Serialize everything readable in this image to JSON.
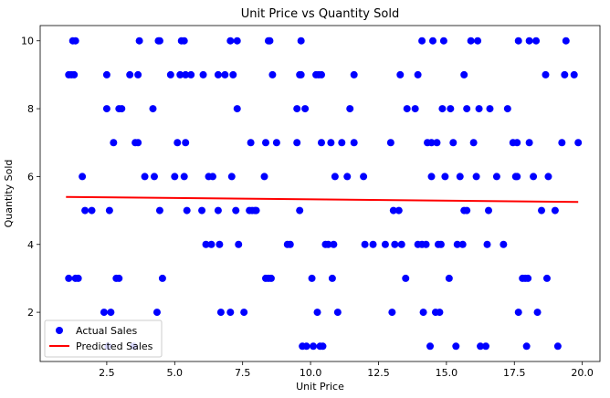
{
  "chart_data": {
    "type": "scatter",
    "title": "Unit Price vs Quantity Sold",
    "xlabel": "Unit Price",
    "ylabel": "Quantity Sold",
    "xlim": [
      0.05,
      20.65
    ],
    "ylim": [
      0.55,
      10.45
    ],
    "xticks": [
      2.5,
      5.0,
      7.5,
      10.0,
      12.5,
      15.0,
      17.5,
      20.0
    ],
    "xtick_labels": [
      "2.5",
      "5.0",
      "7.5",
      "10.0",
      "12.5",
      "15.0",
      "17.5",
      "20.0"
    ],
    "yticks": [
      2,
      4,
      6,
      8,
      10
    ],
    "ytick_labels": [
      "2",
      "4",
      "6",
      "8",
      "10"
    ],
    "grid": false,
    "legend_position": "lower-left",
    "series": [
      {
        "name": "Actual Sales",
        "kind": "scatter",
        "color": "#0000ff",
        "points": [
          [
            1.1,
            9
          ],
          [
            1.2,
            9
          ],
          [
            1.3,
            9
          ],
          [
            1.25,
            10
          ],
          [
            1.35,
            10
          ],
          [
            1.1,
            3
          ],
          [
            1.35,
            3
          ],
          [
            1.45,
            3
          ],
          [
            1.6,
            6
          ],
          [
            1.7,
            5
          ],
          [
            1.95,
            5
          ],
          [
            2.4,
            2
          ],
          [
            2.55,
            1
          ],
          [
            2.65,
            2
          ],
          [
            2.5,
            8
          ],
          [
            2.5,
            9
          ],
          [
            2.6,
            5
          ],
          [
            2.75,
            7
          ],
          [
            2.85,
            3
          ],
          [
            2.95,
            3
          ],
          [
            2.95,
            8
          ],
          [
            3.05,
            8
          ],
          [
            3.35,
            9
          ],
          [
            3.5,
            1
          ],
          [
            3.55,
            7
          ],
          [
            3.65,
            7
          ],
          [
            3.65,
            9
          ],
          [
            3.7,
            10
          ],
          [
            3.9,
            6
          ],
          [
            4.2,
            8
          ],
          [
            4.25,
            6
          ],
          [
            4.35,
            2
          ],
          [
            4.4,
            10
          ],
          [
            4.45,
            10
          ],
          [
            4.45,
            5
          ],
          [
            4.55,
            3
          ],
          [
            4.85,
            9
          ],
          [
            5.0,
            6
          ],
          [
            5.1,
            7
          ],
          [
            5.2,
            9
          ],
          [
            5.25,
            10
          ],
          [
            5.35,
            10
          ],
          [
            5.35,
            6
          ],
          [
            5.4,
            9
          ],
          [
            5.4,
            7
          ],
          [
            5.45,
            5
          ],
          [
            5.6,
            9
          ],
          [
            6.0,
            5
          ],
          [
            6.05,
            9
          ],
          [
            6.15,
            4
          ],
          [
            6.25,
            6
          ],
          [
            6.35,
            4
          ],
          [
            6.4,
            6
          ],
          [
            6.6,
            9
          ],
          [
            6.65,
            4
          ],
          [
            6.6,
            5
          ],
          [
            6.7,
            2
          ],
          [
            6.85,
            9
          ],
          [
            7.05,
            10
          ],
          [
            7.05,
            2
          ],
          [
            7.1,
            6
          ],
          [
            7.15,
            9
          ],
          [
            7.25,
            5
          ],
          [
            7.3,
            10
          ],
          [
            7.3,
            8
          ],
          [
            7.35,
            4
          ],
          [
            7.55,
            2
          ],
          [
            7.75,
            5
          ],
          [
            7.8,
            7
          ],
          [
            7.85,
            5
          ],
          [
            7.95,
            5
          ],
          [
            8.0,
            5
          ],
          [
            8.3,
            6
          ],
          [
            8.35,
            7
          ],
          [
            8.35,
            3
          ],
          [
            8.45,
            3
          ],
          [
            8.45,
            10
          ],
          [
            8.5,
            10
          ],
          [
            8.55,
            3
          ],
          [
            8.6,
            9
          ],
          [
            8.75,
            7
          ],
          [
            9.15,
            4
          ],
          [
            9.25,
            4
          ],
          [
            9.5,
            7
          ],
          [
            9.5,
            8
          ],
          [
            9.6,
            9
          ],
          [
            9.65,
            9
          ],
          [
            9.6,
            5
          ],
          [
            9.65,
            10
          ],
          [
            9.7,
            1
          ],
          [
            9.8,
            8
          ],
          [
            9.85,
            1
          ],
          [
            10.05,
            3
          ],
          [
            10.1,
            1
          ],
          [
            10.2,
            9
          ],
          [
            10.3,
            9
          ],
          [
            10.25,
            2
          ],
          [
            10.35,
            1
          ],
          [
            10.4,
            7
          ],
          [
            10.4,
            9
          ],
          [
            10.45,
            1
          ],
          [
            10.55,
            4
          ],
          [
            10.65,
            4
          ],
          [
            10.75,
            7
          ],
          [
            10.8,
            3
          ],
          [
            10.85,
            4
          ],
          [
            10.9,
            6
          ],
          [
            11.0,
            2
          ],
          [
            11.15,
            7
          ],
          [
            11.35,
            6
          ],
          [
            11.45,
            8
          ],
          [
            11.6,
            9
          ],
          [
            11.6,
            7
          ],
          [
            11.95,
            6
          ],
          [
            12.0,
            4
          ],
          [
            12.3,
            4
          ],
          [
            12.75,
            4
          ],
          [
            12.95,
            7
          ],
          [
            13.0,
            2
          ],
          [
            13.05,
            5
          ],
          [
            13.1,
            4
          ],
          [
            13.25,
            5
          ],
          [
            13.3,
            9
          ],
          [
            13.35,
            4
          ],
          [
            13.5,
            3
          ],
          [
            13.55,
            8
          ],
          [
            13.85,
            8
          ],
          [
            13.95,
            9
          ],
          [
            13.95,
            4
          ],
          [
            14.1,
            4
          ],
          [
            14.1,
            10
          ],
          [
            14.15,
            2
          ],
          [
            14.25,
            4
          ],
          [
            14.3,
            7
          ],
          [
            14.4,
            1
          ],
          [
            14.45,
            6
          ],
          [
            14.45,
            7
          ],
          [
            14.5,
            10
          ],
          [
            14.6,
            2
          ],
          [
            14.65,
            7
          ],
          [
            14.7,
            4
          ],
          [
            14.75,
            2
          ],
          [
            14.8,
            4
          ],
          [
            14.85,
            8
          ],
          [
            14.9,
            10
          ],
          [
            14.95,
            6
          ],
          [
            15.1,
            3
          ],
          [
            15.15,
            8
          ],
          [
            15.25,
            7
          ],
          [
            15.35,
            1
          ],
          [
            15.4,
            4
          ],
          [
            15.5,
            6
          ],
          [
            15.6,
            4
          ],
          [
            15.65,
            5
          ],
          [
            15.65,
            9
          ],
          [
            15.75,
            8
          ],
          [
            15.75,
            5
          ],
          [
            15.9,
            10
          ],
          [
            16.0,
            7
          ],
          [
            16.1,
            6
          ],
          [
            16.15,
            10
          ],
          [
            16.25,
            1
          ],
          [
            16.2,
            8
          ],
          [
            16.5,
            4
          ],
          [
            16.45,
            1
          ],
          [
            16.55,
            5
          ],
          [
            16.6,
            8
          ],
          [
            16.85,
            6
          ],
          [
            17.1,
            4
          ],
          [
            17.25,
            8
          ],
          [
            17.45,
            7
          ],
          [
            17.55,
            6
          ],
          [
            17.6,
            7
          ],
          [
            17.6,
            6
          ],
          [
            17.65,
            10
          ],
          [
            17.65,
            2
          ],
          [
            17.8,
            3
          ],
          [
            17.9,
            3
          ],
          [
            17.95,
            1
          ],
          [
            18.0,
            3
          ],
          [
            18.05,
            7
          ],
          [
            18.05,
            10
          ],
          [
            18.2,
            6
          ],
          [
            18.3,
            10
          ],
          [
            18.35,
            2
          ],
          [
            18.5,
            5
          ],
          [
            18.65,
            9
          ],
          [
            18.7,
            3
          ],
          [
            18.75,
            6
          ],
          [
            19.0,
            5
          ],
          [
            19.1,
            1
          ],
          [
            19.25,
            7
          ],
          [
            19.4,
            10
          ],
          [
            19.35,
            9
          ],
          [
            19.7,
            9
          ],
          [
            19.85,
            7
          ]
        ]
      },
      {
        "name": "Predicted Sales",
        "kind": "line",
        "color": "#ff0000",
        "points": [
          [
            1.0,
            5.4
          ],
          [
            19.85,
            5.25
          ]
        ]
      }
    ]
  }
}
